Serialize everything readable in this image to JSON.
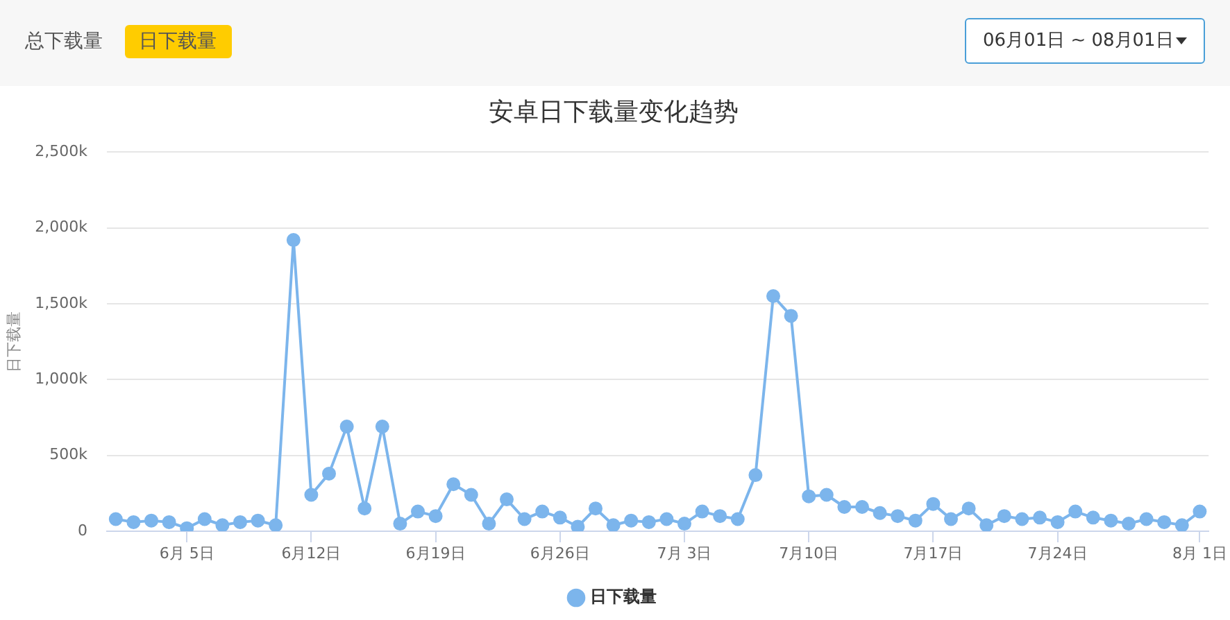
{
  "chart_data": {
    "type": "line",
    "title": "安卓日下载量变化趋势",
    "ylabel": "日下载量",
    "categories": [
      null,
      null,
      null,
      null,
      "6月 5日",
      null,
      null,
      null,
      null,
      null,
      null,
      "6月12日",
      null,
      null,
      null,
      null,
      null,
      null,
      "6月19日",
      null,
      null,
      null,
      null,
      null,
      null,
      "6月26日",
      null,
      null,
      null,
      null,
      null,
      null,
      "7月 3日",
      null,
      null,
      null,
      null,
      null,
      null,
      "7月10日",
      null,
      null,
      null,
      null,
      null,
      null,
      "7月17日",
      null,
      null,
      null,
      null,
      null,
      null,
      "7月24日",
      null,
      null,
      null,
      null,
      null,
      null,
      null,
      "8月 1日"
    ],
    "series": [
      {
        "name": "日下载量",
        "color": "#7cb5ec",
        "values": [
          80,
          60,
          70,
          60,
          20,
          80,
          40,
          60,
          70,
          40,
          1920,
          240,
          380,
          690,
          150,
          690,
          50,
          130,
          100,
          310,
          240,
          50,
          210,
          80,
          130,
          90,
          30,
          150,
          40,
          70,
          60,
          80,
          50,
          130,
          100,
          80,
          370,
          1550,
          1420,
          230,
          240,
          160,
          160,
          120,
          100,
          70,
          180,
          80,
          150,
          40,
          100,
          80,
          90,
          60,
          130,
          90,
          70,
          50,
          80,
          60,
          40,
          130
        ]
      }
    ],
    "ylim": [
      0,
      2500
    ],
    "yticks": [
      0,
      {
        "value": 500,
        "label": "500k"
      },
      {
        "value": 1000,
        "label": "1,000k"
      },
      {
        "value": 1500,
        "label": "1,500k"
      },
      {
        "value": 2000,
        "label": "2,000k"
      },
      {
        "value": 2500,
        "label": "2,500k"
      }
    ],
    "grid": "y",
    "legend": "bottom",
    "marker": "circle",
    "line_style": "solid",
    "annotations": [
      "总下载量",
      "日下载量",
      "06月01日 ~ 08月01日"
    ]
  }
}
